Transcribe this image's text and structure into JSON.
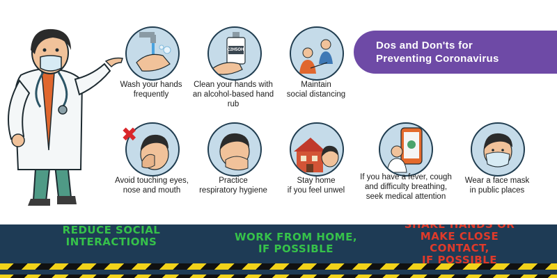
{
  "banner": {
    "title": "Dos and Don'ts for\nPreventing Coronavirus"
  },
  "tips": [
    {
      "icon": "handwash-icon",
      "caption": "Wash your hands\nfrequently"
    },
    {
      "icon": "hand-rub-icon",
      "caption": "Clean your hands with\nan alcohol-based hand rub",
      "bottle_label": "C2H5OH"
    },
    {
      "icon": "social-distance-icon",
      "caption": "Maintain\nsocial distancing"
    },
    {
      "icon": "avoid-touch-face-icon",
      "caption": "Avoid touching eyes,\nnose and mouth"
    },
    {
      "icon": "respiratory-hygiene-icon",
      "caption": "Practice\nrespiratory hygiene"
    },
    {
      "icon": "stay-home-icon",
      "caption": "Stay home\nif you feel unwel"
    },
    {
      "icon": "medical-attention-icon",
      "caption": "If you have a fever, cough\nand difficulty breathing,\nseek medical attention"
    },
    {
      "icon": "face-mask-icon",
      "caption": "Wear a face mask\nin public places"
    }
  ],
  "signs": [
    {
      "text": "REDUCE SOCIAL\nINTERACTIONS",
      "color": "#36c24a"
    },
    {
      "text": "WORK FROM HOME,\nIF POSSIBLE",
      "color": "#36c24a"
    },
    {
      "text": "SHAKE HANDS OR\nMAKE CLOSE CONTACT,\nIF POSSIBLE",
      "color": "#e03a2a"
    }
  ],
  "colors": {
    "banner": "#6e4aa6",
    "tile": "#c5dbe9",
    "hazard_yellow": "#f1d21a",
    "panel": "#1e3b55"
  }
}
